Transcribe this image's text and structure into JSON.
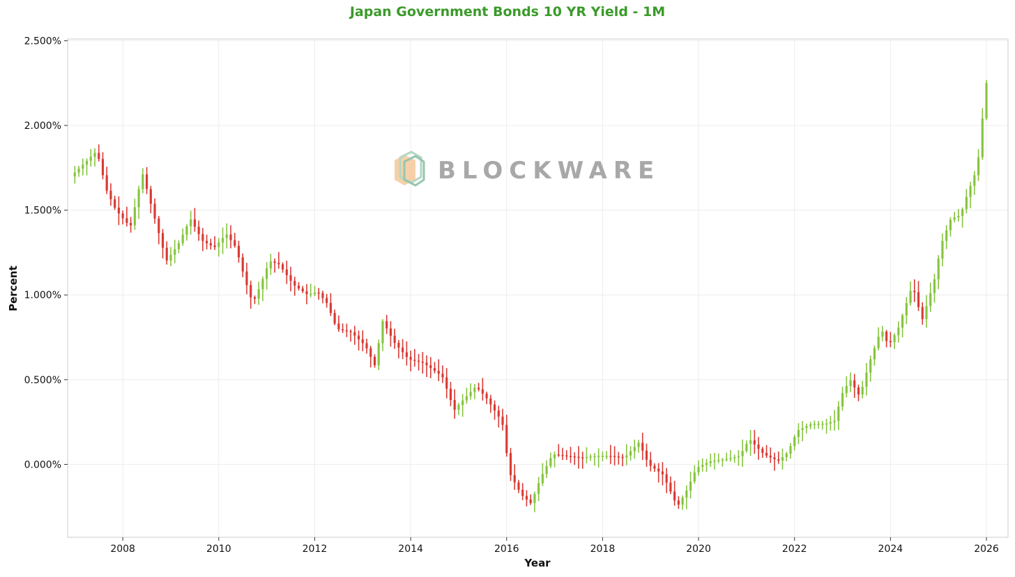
{
  "chart_data": {
    "type": "candlestick",
    "title": "Japan Government Bonds 10 YR Yield - 1M",
    "xlabel": "Year",
    "ylabel": "Percent",
    "x_ticks": [
      "2008",
      "2010",
      "2012",
      "2014",
      "2016",
      "2018",
      "2020",
      "2022",
      "2024",
      "2026"
    ],
    "y_ticks": [
      "0.000%",
      "0.500%",
      "1.000%",
      "1.500%",
      "2.000%",
      "2.500%"
    ],
    "xlim": [
      2006.85,
      2026.45
    ],
    "ylim": [
      -0.43,
      2.51
    ],
    "grid": true,
    "colors": {
      "title": "#3a9a2a",
      "up": "#86c440",
      "down": "#d83a34",
      "grid": "#ececec",
      "frame": "#cccccc"
    },
    "watermark": "BLOCKWARE",
    "points": [
      [
        2007.0,
        1.71
      ],
      [
        2007.5,
        1.85
      ],
      [
        2007.7,
        1.62
      ],
      [
        2007.9,
        1.5
      ],
      [
        2008.2,
        1.4
      ],
      [
        2008.45,
        1.72
      ],
      [
        2008.7,
        1.46
      ],
      [
        2008.95,
        1.2
      ],
      [
        2009.2,
        1.3
      ],
      [
        2009.45,
        1.45
      ],
      [
        2009.7,
        1.32
      ],
      [
        2009.95,
        1.28
      ],
      [
        2010.2,
        1.36
      ],
      [
        2010.4,
        1.28
      ],
      [
        2010.6,
        1.08
      ],
      [
        2010.75,
        0.95
      ],
      [
        2010.9,
        1.05
      ],
      [
        2011.1,
        1.2
      ],
      [
        2011.3,
        1.18
      ],
      [
        2011.6,
        1.06
      ],
      [
        2011.9,
        1.0
      ],
      [
        2012.1,
        1.02
      ],
      [
        2012.3,
        0.95
      ],
      [
        2012.5,
        0.8
      ],
      [
        2012.8,
        0.78
      ],
      [
        2013.1,
        0.7
      ],
      [
        2013.3,
        0.58
      ],
      [
        2013.45,
        0.85
      ],
      [
        2013.7,
        0.72
      ],
      [
        2014.0,
        0.62
      ],
      [
        2014.3,
        0.6
      ],
      [
        2014.7,
        0.52
      ],
      [
        2014.95,
        0.32
      ],
      [
        2015.1,
        0.37
      ],
      [
        2015.4,
        0.46
      ],
      [
        2015.6,
        0.4
      ],
      [
        2015.95,
        0.25
      ],
      [
        2016.1,
        -0.05
      ],
      [
        2016.35,
        -0.18
      ],
      [
        2016.55,
        -0.23
      ],
      [
        2016.75,
        -0.08
      ],
      [
        2017.0,
        0.06
      ],
      [
        2017.3,
        0.05
      ],
      [
        2017.6,
        0.04
      ],
      [
        2017.9,
        0.05
      ],
      [
        2018.2,
        0.05
      ],
      [
        2018.5,
        0.04
      ],
      [
        2018.8,
        0.13
      ],
      [
        2019.0,
        0.0
      ],
      [
        2019.3,
        -0.06
      ],
      [
        2019.6,
        -0.25
      ],
      [
        2019.8,
        -0.15
      ],
      [
        2020.0,
        -0.02
      ],
      [
        2020.3,
        0.02
      ],
      [
        2020.6,
        0.03
      ],
      [
        2020.9,
        0.05
      ],
      [
        2021.1,
        0.15
      ],
      [
        2021.4,
        0.06
      ],
      [
        2021.7,
        0.02
      ],
      [
        2021.9,
        0.07
      ],
      [
        2022.1,
        0.2
      ],
      [
        2022.4,
        0.24
      ],
      [
        2022.7,
        0.24
      ],
      [
        2022.9,
        0.26
      ],
      [
        2023.0,
        0.4
      ],
      [
        2023.2,
        0.5
      ],
      [
        2023.4,
        0.4
      ],
      [
        2023.6,
        0.6
      ],
      [
        2023.85,
        0.8
      ],
      [
        2024.0,
        0.7
      ],
      [
        2024.2,
        0.8
      ],
      [
        2024.5,
        1.06
      ],
      [
        2024.7,
        0.85
      ],
      [
        2024.95,
        1.08
      ],
      [
        2025.1,
        1.3
      ],
      [
        2025.3,
        1.45
      ],
      [
        2025.5,
        1.47
      ],
      [
        2025.65,
        1.6
      ],
      [
        2025.85,
        1.75
      ],
      [
        2025.95,
        2.0
      ],
      [
        2026.0,
        2.25
      ]
    ]
  }
}
